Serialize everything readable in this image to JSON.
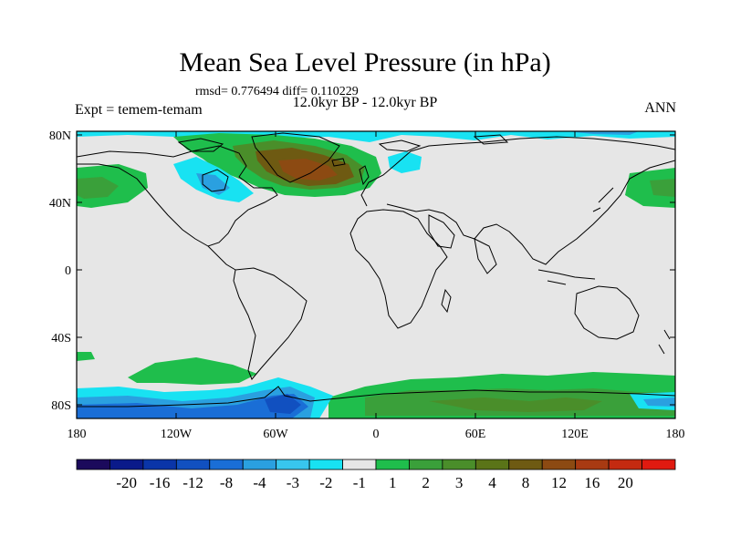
{
  "title": "Mean Sea Level Pressure (in hPa)",
  "stats_line": "rmsd= 0.776494 diff= 0.110229",
  "period": "12.0kyr BP - 12.0kyr BP",
  "experiment_label": "Expt = temem-temam",
  "season": "ANN",
  "map": {
    "lat_ticks": [
      "80N",
      "40N",
      "0",
      "40S",
      "80S"
    ],
    "lon_ticks": [
      "180",
      "120W",
      "60W",
      "0",
      "60E",
      "120E",
      "180"
    ]
  },
  "colorbar": {
    "colors": [
      "#1b0a5c",
      "#0a1a8a",
      "#0a35a8",
      "#1150c0",
      "#1a6ed6",
      "#2aa0e0",
      "#38c6ee",
      "#18e2f2",
      "#e6e6e6",
      "#1fbe4c",
      "#3aa03a",
      "#4a8e2a",
      "#5a7418",
      "#6e5a12",
      "#8c4a12",
      "#a83a12",
      "#c42a10",
      "#e01a10"
    ],
    "labels": [
      "-20",
      "-16",
      "-12",
      "-8",
      "-4",
      "-3",
      "-2",
      "-1",
      "1",
      "2",
      "3",
      "4",
      "8",
      "12",
      "16",
      "20"
    ]
  },
  "colors": {
    "background": "#e6e6e6",
    "coastline": "#000000",
    "frame": "#000000"
  }
}
